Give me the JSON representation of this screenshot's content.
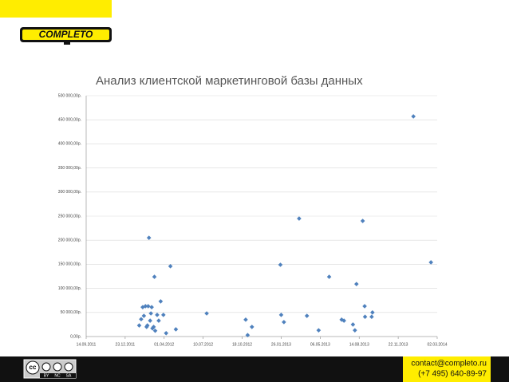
{
  "header": {
    "logo": "COMPLETO"
  },
  "chart_data": {
    "type": "scatter",
    "title": "Анализ клиентской маркетинговой базы данных",
    "x": [
      "2012-01-28",
      "2012-02-02",
      "2012-02-06",
      "2012-02-09",
      "2012-02-13",
      "2012-02-16",
      "2012-02-20",
      "2012-02-18",
      "2012-02-25",
      "2012-02-22",
      "2012-02-27",
      "2012-02-29",
      "2012-03-02",
      "2012-03-05",
      "2012-03-07",
      "2012-03-09",
      "2012-03-14",
      "2012-03-18",
      "2012-03-23",
      "2012-03-30",
      "2012-04-06",
      "2012-04-17",
      "2012-05-01",
      "2012-07-19",
      "2012-10-27",
      "2012-11-01",
      "2012-11-12",
      "2013-01-24",
      "2013-01-26",
      "2013-02-02",
      "2013-03-13",
      "2013-04-02",
      "2013-05-02",
      "2013-05-29",
      "2013-06-30",
      "2013-07-06",
      "2013-07-29",
      "2013-08-03",
      "2013-08-07",
      "2013-08-23",
      "2013-08-28",
      "2013-08-29",
      "2013-09-15",
      "2013-09-17",
      "2013-12-31",
      "2014-02-14"
    ],
    "values": [
      23000,
      36000,
      61000,
      43000,
      63000,
      20000,
      63000,
      23000,
      33000,
      205000,
      48000,
      61000,
      17000,
      20000,
      124000,
      12000,
      45000,
      33000,
      73000,
      45000,
      7000,
      146000,
      15000,
      48000,
      35000,
      3000,
      20000,
      149000,
      45000,
      30000,
      245000,
      43000,
      13000,
      124000,
      35000,
      33000,
      25000,
      13000,
      109000,
      240000,
      63000,
      41000,
      41000,
      50000,
      457000,
      154000
    ],
    "color": "#4f81bd",
    "xlim": [
      "2011-09-14",
      "2014-03-02"
    ],
    "xticks": [
      {
        "value": "2011-09-14",
        "label": "14.09.2011"
      },
      {
        "value": "2011-12-23",
        "label": "23.12.2011"
      },
      {
        "value": "2012-04-01",
        "label": "01.04.2012"
      },
      {
        "value": "2012-07-10",
        "label": "10.07.2012"
      },
      {
        "value": "2012-10-18",
        "label": "18.10.2012"
      },
      {
        "value": "2013-01-26",
        "label": "26.01.2013"
      },
      {
        "value": "2013-05-06",
        "label": "06.05.2013"
      },
      {
        "value": "2013-08-14",
        "label": "14.08.2013"
      },
      {
        "value": "2013-11-22",
        "label": "22.11.2013"
      },
      {
        "value": "2014-03-02",
        "label": "02.03.2014"
      }
    ],
    "ylim": [
      0,
      500000
    ],
    "yticks": [
      {
        "value": 0,
        "label": "0,00р."
      },
      {
        "value": 50000,
        "label": "50 000,00р."
      },
      {
        "value": 100000,
        "label": "100 000,00р."
      },
      {
        "value": 150000,
        "label": "150 000,00р."
      },
      {
        "value": 200000,
        "label": "200 000,00р."
      },
      {
        "value": 250000,
        "label": "250 000,00р."
      },
      {
        "value": 300000,
        "label": "300 000,00р."
      },
      {
        "value": 350000,
        "label": "350 000,00р."
      },
      {
        "value": 400000,
        "label": "400 000,00р."
      },
      {
        "value": 450000,
        "label": "450 000,00р."
      },
      {
        "value": 500000,
        "label": "500 000,00р."
      }
    ],
    "grid": true
  },
  "footer": {
    "license": [
      "cc",
      "BY",
      "NC",
      "SA"
    ],
    "email": "contact@completo.ru",
    "phone": "(+7 495)  640-89-97"
  }
}
